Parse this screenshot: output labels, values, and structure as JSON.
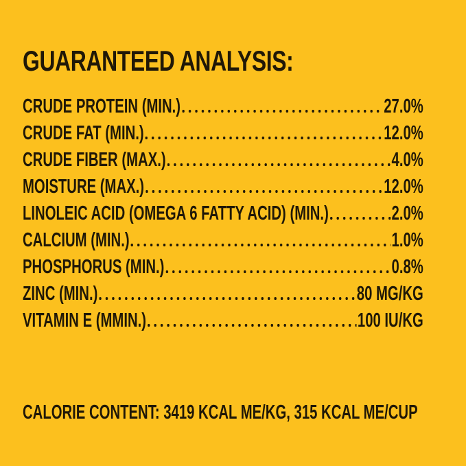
{
  "title": "GUARANTEED ANALYSIS:",
  "colors": {
    "background": "#fcc01e",
    "text": "#201807"
  },
  "analysis_rows": [
    {
      "label": "CRUDE PROTEIN (MIN.)",
      "value": "27.0%"
    },
    {
      "label": "CRUDE FAT (MIN.)",
      "value": "12.0%"
    },
    {
      "label": "CRUDE FIBER (MAX.)",
      "value": "4.0%"
    },
    {
      "label": "MOISTURE (MAX.)",
      "value": "12.0%"
    },
    {
      "label": "LINOLEIC ACID (OMEGA 6 FATTY ACID) (MIN.)",
      "value": "2.0%"
    },
    {
      "label": "CALCIUM (MIN.)",
      "value": "1.0%"
    },
    {
      "label": "PHOSPHORUS (MIN.)",
      "value": "0.8%"
    },
    {
      "label": "ZINC (MIN.)",
      "value": "80 MG/KG"
    },
    {
      "label": "VITAMIN E (MMIN.)",
      "value": "100 IU/KG"
    }
  ],
  "calorie_line": "CALORIE CONTENT: 3419 KCAL ME/KG, 315 KCAL ME/CUP"
}
